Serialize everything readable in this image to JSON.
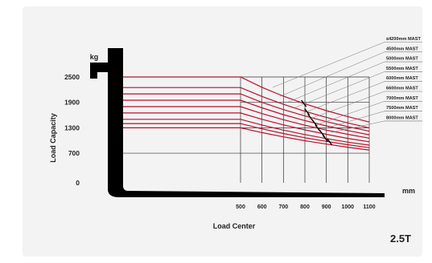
{
  "chart_data": {
    "type": "line",
    "title": "",
    "model": "2.5T",
    "xlabel": "Load Center",
    "ylabel": "Load Capacity",
    "x_unit": "mm",
    "y_unit": "kg",
    "x_ticks": [
      "500",
      "600",
      "700",
      "800",
      "900",
      "1000",
      "1100"
    ],
    "y_ticks": [
      "2500",
      "1900",
      "1300",
      "700",
      "0"
    ],
    "x_range": [
      500,
      1100
    ],
    "y_range": [
      0,
      2500
    ],
    "grid": true,
    "legend_position": "right",
    "series": [
      {
        "name": "≤4200mm MAST",
        "x": [
          0,
          500,
          600,
          700,
          800,
          900,
          1000,
          1100
        ],
        "y": [
          2500,
          2500,
          2255,
          2045,
          1865,
          1705,
          1565,
          1435
        ]
      },
      {
        "name": "4500mm MAST",
        "x": [
          0,
          500,
          600,
          700,
          800,
          900,
          1000,
          1100
        ],
        "y": [
          2250,
          2250,
          2040,
          1855,
          1690,
          1545,
          1415,
          1300
        ]
      },
      {
        "name": "5000mm MAST",
        "x": [
          0,
          500,
          600,
          700,
          800,
          900,
          1000,
          1100
        ],
        "y": [
          2100,
          2100,
          1900,
          1730,
          1580,
          1445,
          1325,
          1220
        ]
      },
      {
        "name": "5500mm MAST",
        "x": [
          0,
          500,
          600,
          700,
          800,
          900,
          1000,
          1100
        ],
        "y": [
          1950,
          1950,
          1770,
          1610,
          1470,
          1345,
          1235,
          1135
        ]
      },
      {
        "name": "6000mm MAST",
        "x": [
          0,
          500,
          600,
          700,
          800,
          900,
          1000,
          1100
        ],
        "y": [
          1800,
          1800,
          1635,
          1490,
          1360,
          1245,
          1145,
          1055
        ]
      },
      {
        "name": "6600mm MAST",
        "x": [
          0,
          500,
          600,
          700,
          800,
          900,
          1000,
          1100
        ],
        "y": [
          1650,
          1650,
          1500,
          1370,
          1250,
          1145,
          1050,
          970
        ]
      },
      {
        "name": "7000mm MAST",
        "x": [
          0,
          500,
          600,
          700,
          800,
          900,
          1000,
          1100
        ],
        "y": [
          1500,
          1500,
          1365,
          1245,
          1140,
          1045,
          960,
          890
        ]
      },
      {
        "name": "7500mm MAST",
        "x": [
          0,
          500,
          600,
          700,
          800,
          900,
          1000,
          1100
        ],
        "y": [
          1400,
          1400,
          1275,
          1165,
          1065,
          980,
          900,
          830
        ]
      },
      {
        "name": "8000mm MAST",
        "x": [
          0,
          500,
          600,
          700,
          800,
          900,
          1000,
          1100
        ],
        "y": [
          1300,
          1300,
          1185,
          1085,
          995,
          915,
          840,
          775
        ]
      }
    ],
    "colors": {
      "curve": "#b8102a",
      "grid": "#333333",
      "fork": "#000000",
      "leader": "#777777"
    }
  }
}
